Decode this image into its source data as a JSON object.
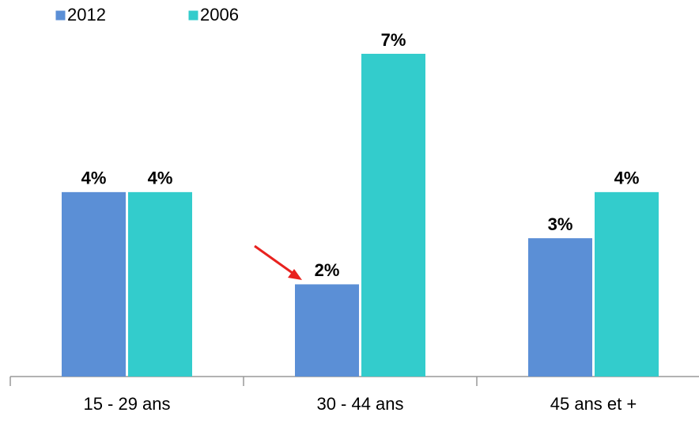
{
  "chart_data": {
    "type": "bar",
    "categories": [
      "15 - 29 ans",
      "30 - 44 ans",
      "45 ans et +"
    ],
    "series": [
      {
        "name": "2012",
        "color": "#5b8fd6",
        "label_color": "#2a6fbd",
        "values": [
          4,
          2,
          3
        ],
        "value_labels": [
          "4%",
          "2%",
          "3%"
        ]
      },
      {
        "name": "2006",
        "color": "#33cccc",
        "label_color": "#1fa3a3",
        "values": [
          4,
          7,
          4
        ],
        "value_labels": [
          "4%",
          "7%",
          "4%"
        ]
      }
    ]
  }
}
